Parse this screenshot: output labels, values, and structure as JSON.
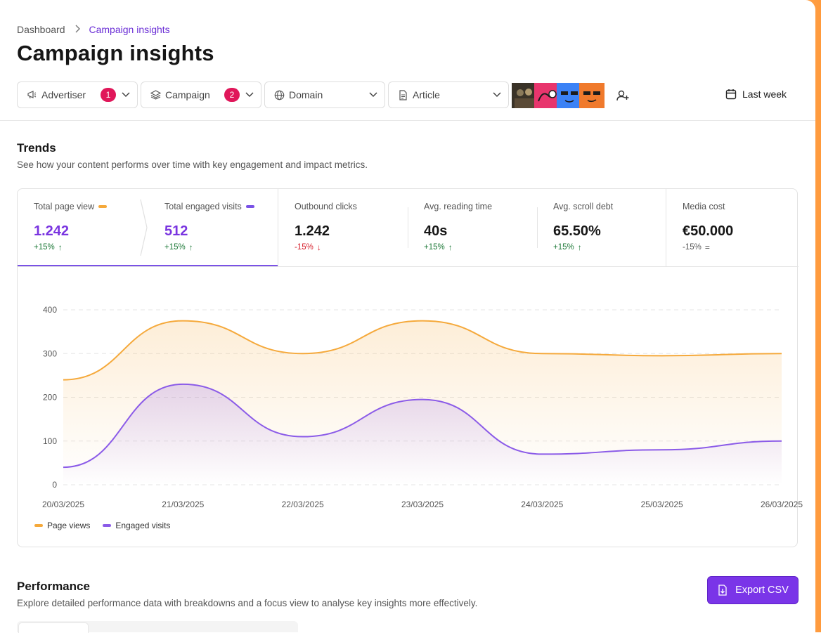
{
  "breadcrumb": {
    "root": "Dashboard",
    "current": "Campaign insights"
  },
  "page": {
    "title": "Campaign insights"
  },
  "filters": [
    {
      "label": "Advertiser",
      "icon": "megaphone-icon",
      "badge": "1"
    },
    {
      "label": "Campaign",
      "icon": "layers-icon",
      "badge": "2"
    },
    {
      "label": "Domain",
      "icon": "globe-icon",
      "badge": ""
    },
    {
      "label": "Article",
      "icon": "document-icon",
      "badge": ""
    }
  ],
  "avatars": [
    {
      "name": "avatar-1",
      "color": "#2a2a2a"
    },
    {
      "name": "avatar-2",
      "color": "#e8356d"
    },
    {
      "name": "avatar-3",
      "color": "#3b82f6"
    },
    {
      "name": "avatar-4",
      "color": "#f07a2c"
    }
  ],
  "date_range": {
    "label": "Last week"
  },
  "trends": {
    "title": "Trends",
    "subtitle": "See how your content performs over time with key engagement and impact metrics."
  },
  "metrics": [
    {
      "label": "Total page view",
      "value": "1.242",
      "change": "+15%",
      "direction": "up",
      "color": "#f5a93b"
    },
    {
      "label": "Total engaged visits",
      "value": "512",
      "change": "+15%",
      "direction": "up",
      "color": "#7a52e6"
    },
    {
      "label": "Outbound clicks",
      "value": "1.242",
      "change": "-15%",
      "direction": "down"
    },
    {
      "label": "Avg. reading time",
      "value": "40s",
      "change": "+15%",
      "direction": "up"
    },
    {
      "label": "Avg. scroll debt",
      "value": "65.50%",
      "change": "+15%",
      "direction": "up"
    },
    {
      "label": "Media cost",
      "value": "€50.000",
      "change": "-15%",
      "direction": "flat"
    }
  ],
  "chart_data": {
    "type": "area",
    "x": [
      "20/03/2025",
      "21/03/2025",
      "22/03/2025",
      "23/03/2025",
      "24/03/2025",
      "25/03/2025",
      "26/03/2025"
    ],
    "yticks": [
      0,
      100,
      200,
      300,
      400
    ],
    "ylim": [
      0,
      400
    ],
    "grid": true,
    "legend": "bottom-left",
    "series": [
      {
        "name": "Page views",
        "color": "#f5a93b",
        "values": [
          240,
          375,
          300,
          375,
          300,
          295,
          300
        ]
      },
      {
        "name": "Engaged visits",
        "color": "#8b5be8",
        "values": [
          40,
          230,
          110,
          195,
          70,
          80,
          100
        ]
      }
    ]
  },
  "performance": {
    "title": "Performance",
    "subtitle": "Explore detailed performance data with breakdowns and a focus view to analyse key insights more effectively.",
    "export_label": "Export CSV"
  }
}
